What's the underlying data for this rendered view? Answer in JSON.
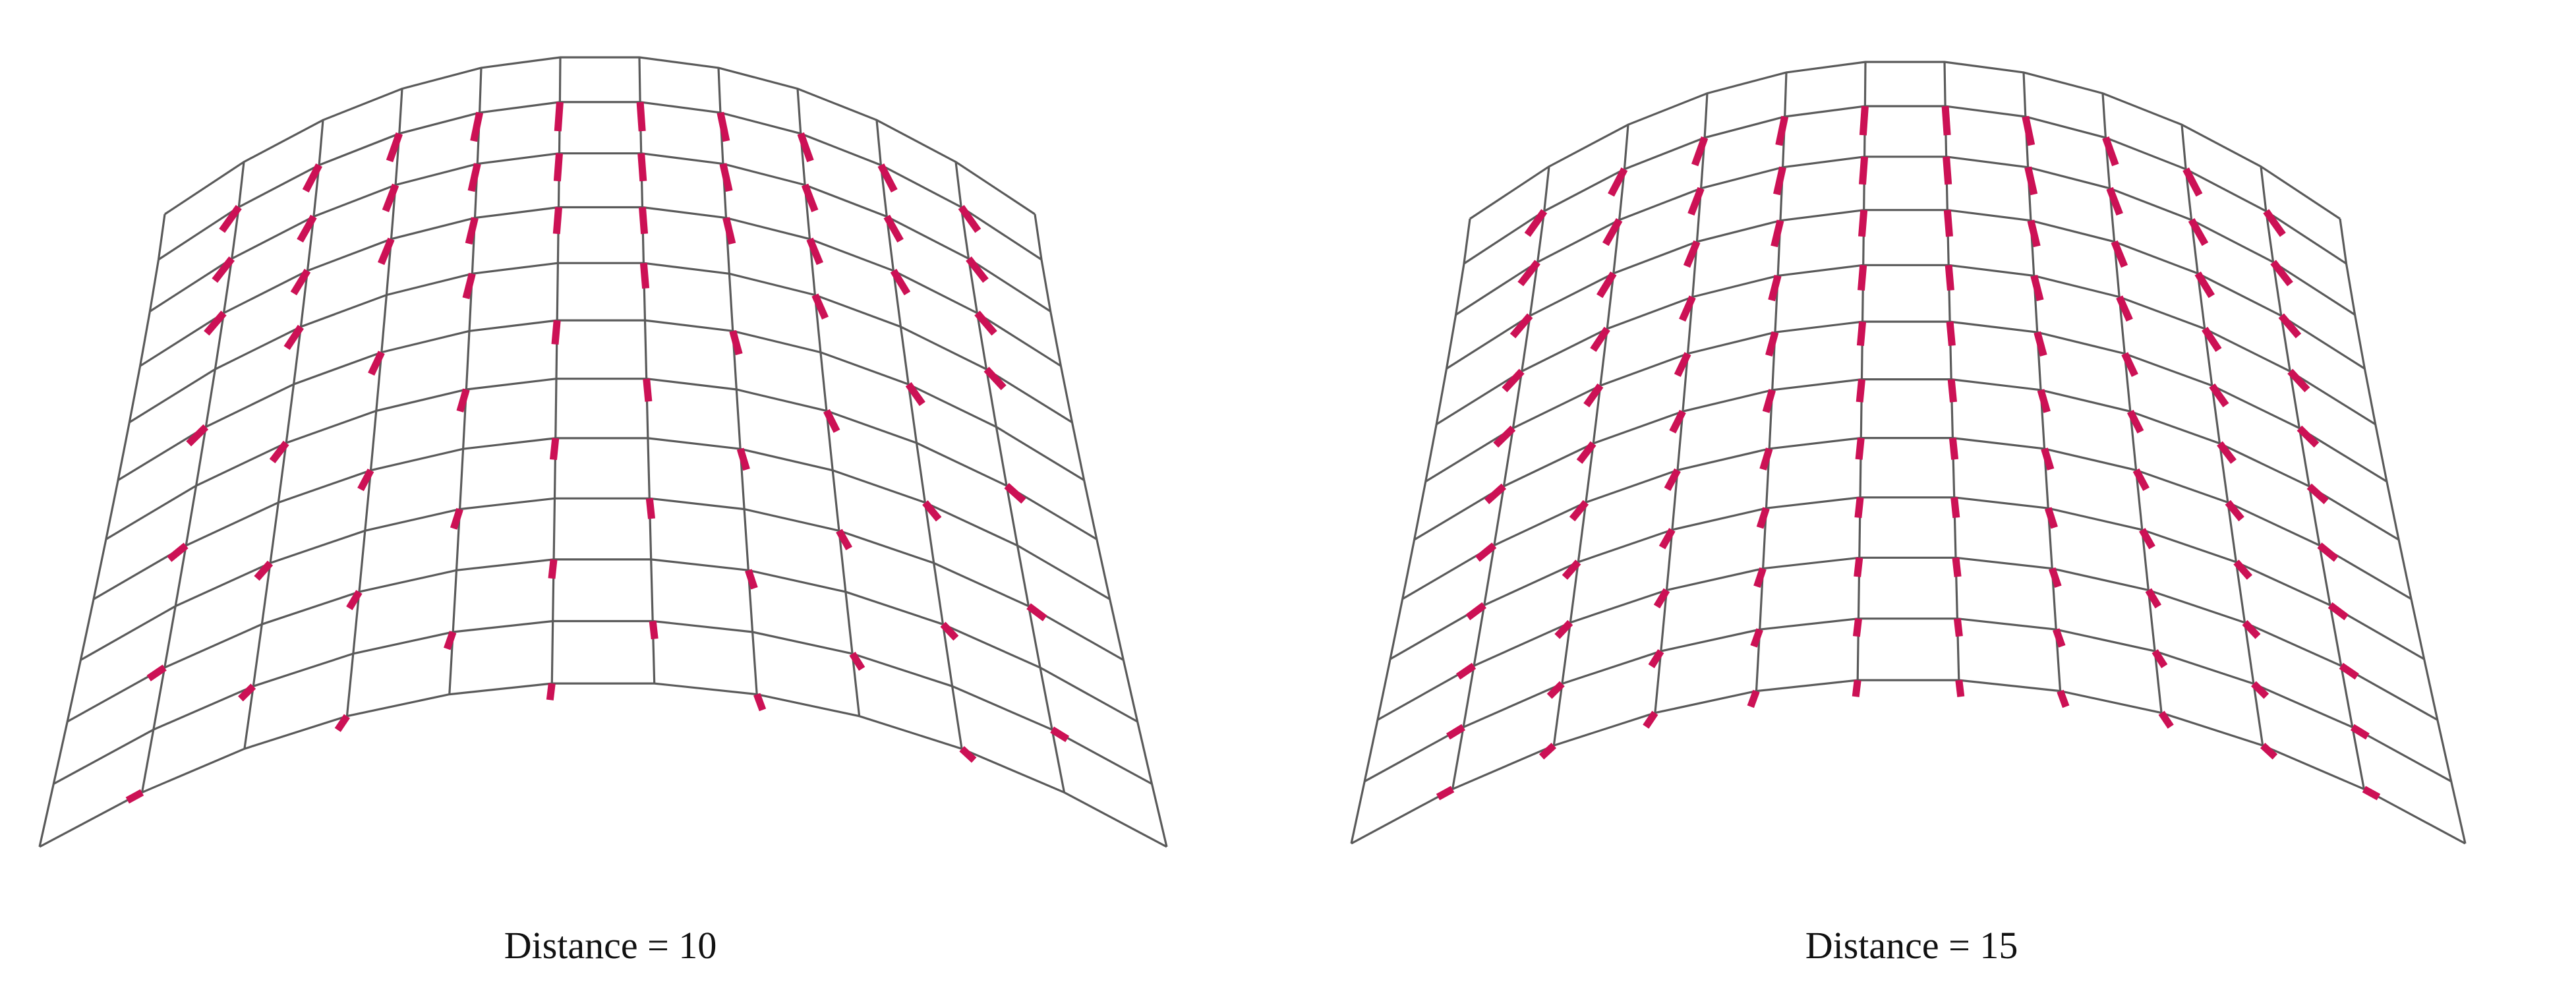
{
  "panels": [
    {
      "caption": "Distance = 10"
    },
    {
      "caption": "Distance = 15"
    }
  ],
  "colors": {
    "grid_line": "#5a5a5a",
    "normal_tick": "#cc1155",
    "background": "#ffffff"
  }
}
